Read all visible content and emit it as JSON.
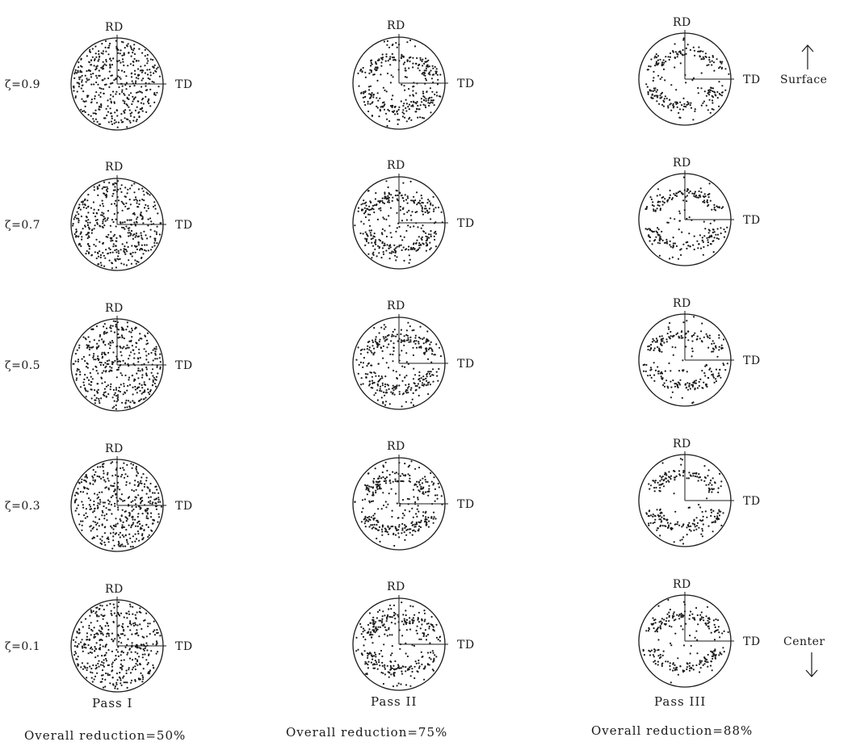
{
  "labels": {
    "rd": "RD",
    "td": "TD",
    "surface": "Surface",
    "center": "Center"
  },
  "rows": [
    {
      "zeta": "ζ=0.9"
    },
    {
      "zeta": "ζ=0.7"
    },
    {
      "zeta": "ζ=0.5"
    },
    {
      "zeta": "ζ=0.3"
    },
    {
      "zeta": "ζ=0.1"
    }
  ],
  "columns": [
    {
      "pass": "Pass I",
      "overall": "Overall reduction=50%"
    },
    {
      "pass": "Pass II",
      "overall": "Overall reduction=75%"
    },
    {
      "pass": "Pass III",
      "overall": "Overall reduction=88%"
    }
  ]
}
